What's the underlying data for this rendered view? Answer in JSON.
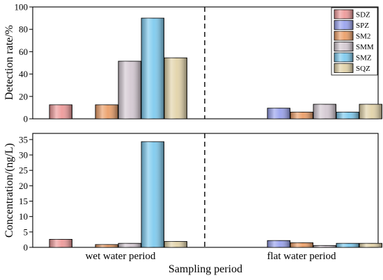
{
  "chart_data": [
    {
      "type": "bar",
      "ylabel": "Detection rate/%",
      "ylim": [
        0,
        100
      ],
      "yticks": [
        0,
        20,
        40,
        60,
        80,
        100
      ],
      "categories": [
        "wet water period",
        "flat water period"
      ],
      "series": [
        {
          "name": "SDZ",
          "color": "#ee9a9a",
          "values": [
            12.5,
            null
          ]
        },
        {
          "name": "SPZ",
          "color": "#9aa3ee",
          "values": [
            null,
            9.5
          ]
        },
        {
          "name": "SM2",
          "color": "#ec9f69",
          "values": [
            12.5,
            6.0
          ]
        },
        {
          "name": "SMM",
          "color": "#d4c9d2",
          "values": [
            51.5,
            13.0
          ]
        },
        {
          "name": "SMZ",
          "color": "#7fcbef",
          "values": [
            90.0,
            6.0
          ]
        },
        {
          "name": "SQZ",
          "color": "#e2d3a9",
          "values": [
            54.5,
            13.0
          ]
        }
      ],
      "legend": "top-right",
      "grid": false
    },
    {
      "type": "bar",
      "ylabel": "Concentration/(ng/L)",
      "xlabel": "Sampling period",
      "ylim": [
        0,
        37
      ],
      "yticks": [
        0,
        5,
        10,
        15,
        20,
        25,
        30,
        35
      ],
      "categories": [
        "wet water period",
        "flat water period"
      ],
      "series": [
        {
          "name": "SDZ",
          "color": "#ee9a9a",
          "values": [
            2.6,
            null
          ]
        },
        {
          "name": "SPZ",
          "color": "#9aa3ee",
          "values": [
            null,
            2.2
          ]
        },
        {
          "name": "SM2",
          "color": "#ec9f69",
          "values": [
            0.9,
            1.5
          ]
        },
        {
          "name": "SMM",
          "color": "#d4c9d2",
          "values": [
            1.3,
            0.6
          ]
        },
        {
          "name": "SMZ",
          "color": "#7fcbef",
          "values": [
            34.3,
            1.3
          ]
        },
        {
          "name": "SQZ",
          "color": "#e2d3a9",
          "values": [
            1.9,
            1.3
          ]
        }
      ],
      "grid": false
    }
  ]
}
